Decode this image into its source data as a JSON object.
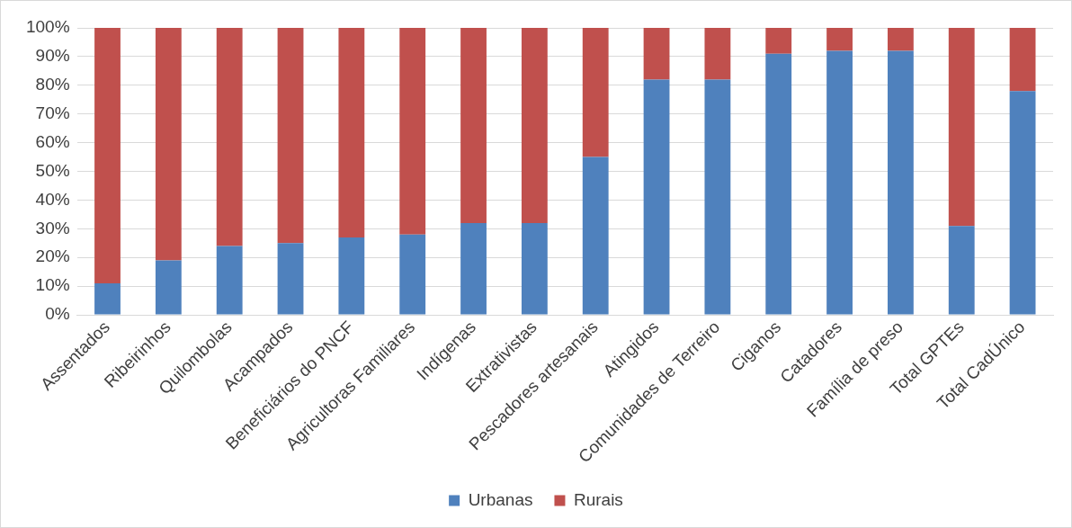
{
  "chart_data": {
    "type": "bar",
    "stacked": true,
    "categories": [
      "Assentados",
      "Ribeirinhos",
      "Quilombolas",
      "Acampados",
      "Beneficiários do PNCF",
      "Agricultoras Familiares",
      "Indígenas",
      "Extrativistas",
      "Pescadores artesanais",
      "Atingidos",
      "Comunidades de Terreiro",
      "Ciganos",
      "Catadores",
      "Família de preso",
      "Total GPTEs",
      "Total CadÚnico"
    ],
    "series": [
      {
        "name": "Urbanas",
        "color": "#4f81bd",
        "values": [
          11,
          19,
          24,
          25,
          27,
          28,
          32,
          32,
          55,
          82,
          82,
          91,
          92,
          92,
          31,
          78
        ]
      },
      {
        "name": "Rurais",
        "color": "#c0504d",
        "values": [
          89,
          81,
          76,
          75,
          73,
          72,
          68,
          68,
          45,
          18,
          18,
          9,
          8,
          8,
          69,
          22
        ]
      }
    ],
    "ylim": [
      0,
      100
    ],
    "yticks": [
      {
        "value": 0,
        "label": "0%"
      },
      {
        "value": 10,
        "label": "10%"
      },
      {
        "value": 20,
        "label": "20%"
      },
      {
        "value": 30,
        "label": "30%"
      },
      {
        "value": 40,
        "label": "40%"
      },
      {
        "value": 50,
        "label": "50%"
      },
      {
        "value": 60,
        "label": "60%"
      },
      {
        "value": 70,
        "label": "70%"
      },
      {
        "value": 80,
        "label": "80%"
      },
      {
        "value": 90,
        "label": "90%"
      },
      {
        "value": 100,
        "label": "100%"
      }
    ],
    "grid": "y",
    "legend": "bottom"
  }
}
